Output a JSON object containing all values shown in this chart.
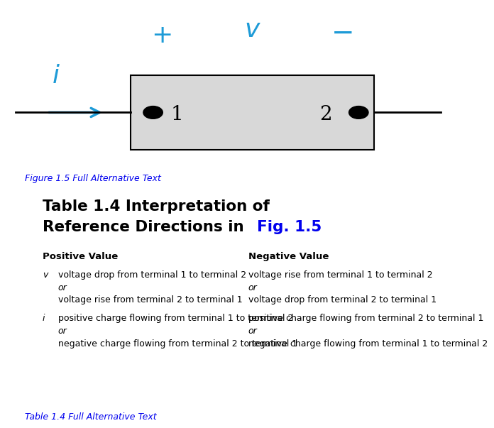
{
  "fig_width": 6.23,
  "fig_height": 6.05,
  "bg_color": "#ffffff",
  "cyan_color": "#1E9BD7",
  "link_color": "#0000EE",
  "black": "#000000",
  "title_line1": "Table 1.4 Interpretation of",
  "title_line2": "Reference Directions in ",
  "title_link": "Fig. 1.5",
  "fig_link_text": "Figure 1.5 Full Alternative Text",
  "table_link_text": "Table 1.4 Full Alternative Text",
  "col1_header": "Positive Value",
  "col2_header": "Negative Value",
  "rows": [
    {
      "label": "v",
      "col1": [
        "voltage drop from terminal 1 to terminal 2",
        "or",
        "voltage rise from terminal 2 to terminal 1"
      ],
      "col2": [
        "voltage rise from terminal 1 to terminal 2",
        "or",
        "voltage drop from terminal 2 to terminal 1"
      ]
    },
    {
      "label": "i",
      "col1": [
        "positive charge flowing from terminal 1 to terminal 2",
        "or",
        "negative charge flowing from terminal 2 to terminal 1"
      ],
      "col2": [
        "positive charge flowing from terminal 2 to terminal 1",
        "or",
        "negative charge flowing from terminal 1 to terminal 2"
      ]
    }
  ]
}
